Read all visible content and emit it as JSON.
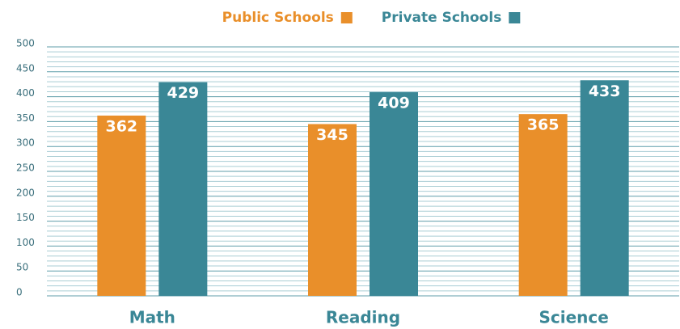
{
  "chart_data": {
    "type": "bar",
    "categories": [
      "Math",
      "Reading",
      "Science"
    ],
    "series": [
      {
        "name": "Public Schools",
        "color": "#e98f2a",
        "values": [
          362,
          345,
          365
        ]
      },
      {
        "name": "Private Schools",
        "color": "#3a8796",
        "values": [
          429,
          409,
          433
        ]
      }
    ],
    "ylim": [
      0,
      500
    ],
    "yticks": [
      0,
      50,
      100,
      150,
      200,
      250,
      300,
      350,
      400,
      450,
      500
    ],
    "minor_yticks": [
      10,
      20,
      30,
      40,
      60,
      70,
      80,
      90,
      110,
      120,
      130,
      140,
      160,
      170,
      180,
      190,
      210,
      220,
      230,
      240,
      260,
      270,
      280,
      290,
      310,
      320,
      330,
      340,
      360,
      370,
      380,
      390,
      410,
      420,
      430,
      440,
      460,
      470,
      480,
      490
    ],
    "grid": true,
    "legend": "top"
  }
}
